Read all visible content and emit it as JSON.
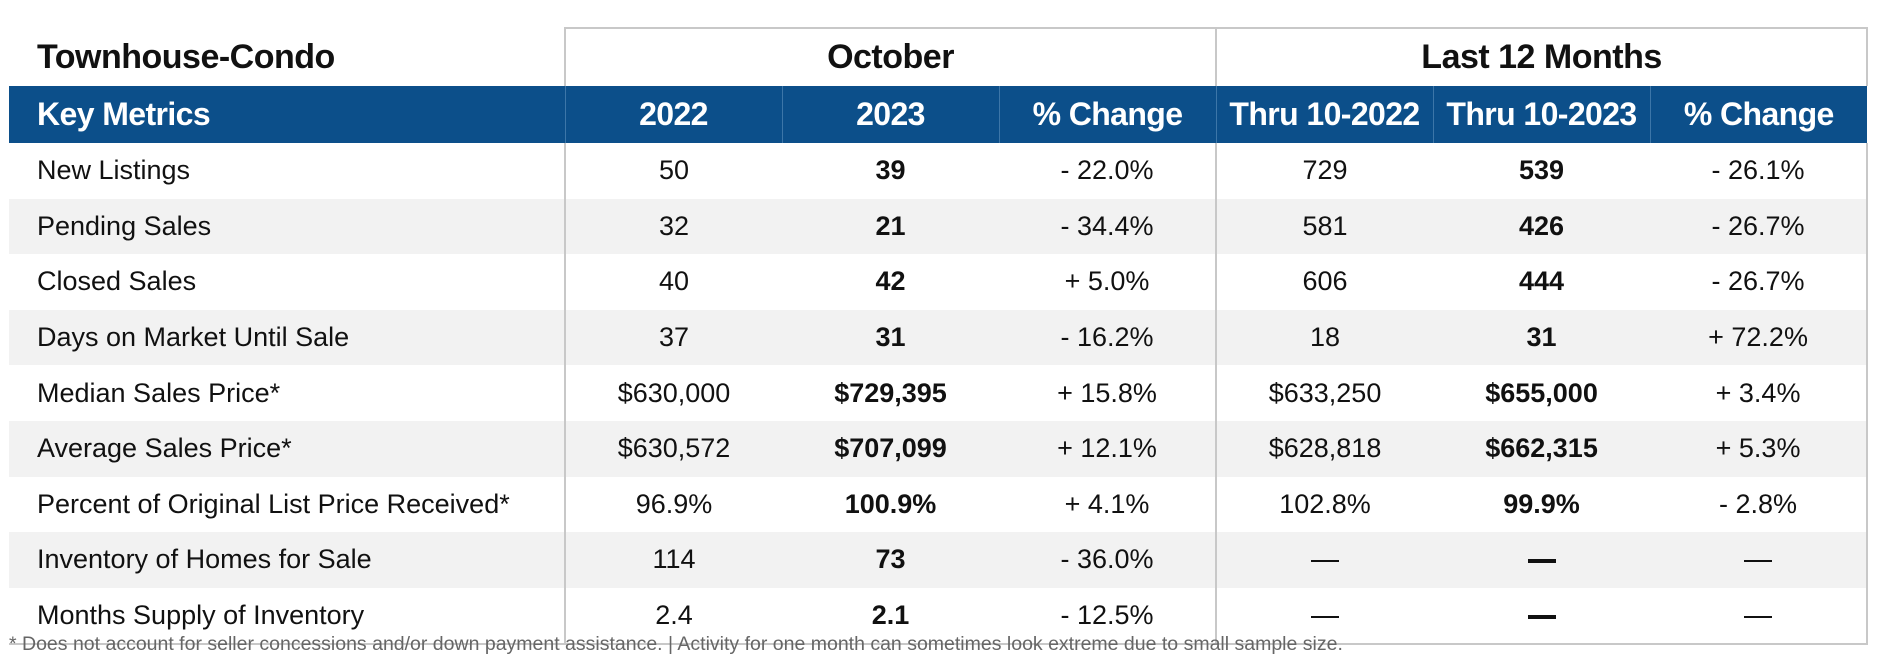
{
  "title": "Townhouse-Condo",
  "groups": {
    "period": "October",
    "rolling": "Last 12 Months"
  },
  "headers": {
    "metric": "Key Metrics",
    "y2022": "2022",
    "y2023": "2023",
    "pct1": "% Change",
    "thru2022": "Thru 10-2022",
    "thru2023": "Thru 10-2023",
    "pct2": "% Change"
  },
  "rows": [
    {
      "metric": "New Listings",
      "v2022": "50",
      "v2023": "39",
      "pct": "- 22.0%",
      "t2022": "729",
      "t2023": "539",
      "tpct": "- 26.1%"
    },
    {
      "metric": "Pending Sales",
      "v2022": "32",
      "v2023": "21",
      "pct": "- 34.4%",
      "t2022": "581",
      "t2023": "426",
      "tpct": "- 26.7%"
    },
    {
      "metric": "Closed Sales",
      "v2022": "40",
      "v2023": "42",
      "pct": "+ 5.0%",
      "t2022": "606",
      "t2023": "444",
      "tpct": "- 26.7%"
    },
    {
      "metric": "Days on Market Until Sale",
      "v2022": "37",
      "v2023": "31",
      "pct": "- 16.2%",
      "t2022": "18",
      "t2023": "31",
      "tpct": "+ 72.2%"
    },
    {
      "metric": "Median Sales Price*",
      "v2022": "$630,000",
      "v2023": "$729,395",
      "pct": "+ 15.8%",
      "t2022": "$633,250",
      "t2023": "$655,000",
      "tpct": "+ 3.4%"
    },
    {
      "metric": "Average Sales Price*",
      "v2022": "$630,572",
      "v2023": "$707,099",
      "pct": "+ 12.1%",
      "t2022": "$628,818",
      "t2023": "$662,315",
      "tpct": "+ 5.3%"
    },
    {
      "metric": "Percent of Original List Price Received*",
      "v2022": "96.9%",
      "v2023": "100.9%",
      "pct": "+ 4.1%",
      "t2022": "102.8%",
      "t2023": "99.9%",
      "tpct": "- 2.8%"
    },
    {
      "metric": "Inventory of Homes for Sale",
      "v2022": "114",
      "v2023": "73",
      "pct": "- 36.0%",
      "t2022": "—",
      "t2023": "—",
      "tpct": "—"
    },
    {
      "metric": "Months Supply of Inventory",
      "v2022": "2.4",
      "v2023": "2.1",
      "pct": "- 12.5%",
      "t2022": "—",
      "t2023": "—",
      "tpct": "—"
    }
  ],
  "footnote": "* Does not account for seller concessions and/or down payment assistance. | Activity for one month can sometimes look extreme due to small sample size.",
  "colors": {
    "header_bg": "#0c4f8a",
    "stripe": "#f2f2f2",
    "rule": "#c8c8c8"
  }
}
